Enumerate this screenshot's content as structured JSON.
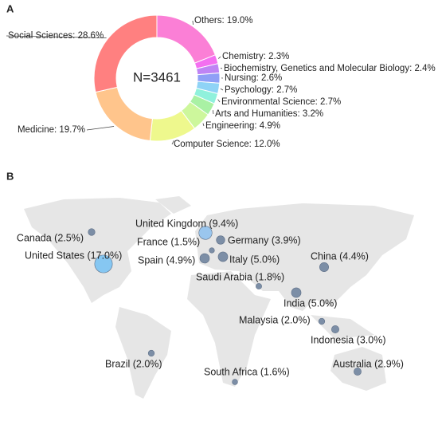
{
  "chart_data": [
    {
      "type": "pie",
      "panel": "A",
      "center_label": "N=3461",
      "values": [
        19.0,
        2.3,
        2.4,
        2.6,
        2.7,
        2.7,
        3.2,
        4.9,
        12.0,
        19.7,
        28.6
      ],
      "value_labels": [
        "Others: 19.0%",
        "Chemistry: 2.3%",
        "Biochemistry, Genetics and Molecular Biology: 2.4%",
        "Nursing: 2.6%",
        "Psychology: 2.7%",
        "Environmental Science: 2.7%",
        "Arts and Humanities: 3.2%",
        "Engineering: 4.9%",
        "Computer Science: 12.0%",
        "Medicine: 19.7%",
        "Social Sciences: 28.6%"
      ],
      "colors": [
        "#fb7fd6",
        "#f46ff0",
        "#bf84f4",
        "#8f9ff6",
        "#8fd3f6",
        "#90f1dc",
        "#a9f1a4",
        "#cdf79c",
        "#eef88d",
        "#ffc58c",
        "#ff8080"
      ]
    },
    {
      "type": "bubble-map",
      "panel": "B",
      "values": [
        2.5,
        17.0,
        9.4,
        1.5,
        3.9,
        4.9,
        5.0,
        1.8,
        4.4,
        5.0,
        2.0,
        3.0,
        2.9,
        2.0,
        1.6
      ],
      "value_labels": [
        "Canada (2.5%)",
        "United States (17.0%)",
        "United Kingdom (9.4%)",
        "France (1.5%)",
        "Germany (3.9%)",
        "Spain (4.9%)",
        "Italy (5.0%)",
        "Saudi Arabia (1.8%)",
        "China (4.4%)",
        "India (5.0%)",
        "Malaysia (2.0%)",
        "Indonesia (3.0%)",
        "Australia (2.9%)",
        "Brazil (2.0%)",
        "South Africa (1.6%)"
      ],
      "colors": [
        "#7c8ea6",
        "#86c7f2",
        "#9ac6ee",
        "#7c8ea6",
        "#7c8ea6",
        "#7c8ea6",
        "#7c8ea6",
        "#7c8ea6",
        "#7c8ea6",
        "#7c8ea6",
        "#7c8ea6",
        "#7c8ea6",
        "#7c8ea6",
        "#7c8ea6",
        "#7c8ea6"
      ]
    }
  ]
}
